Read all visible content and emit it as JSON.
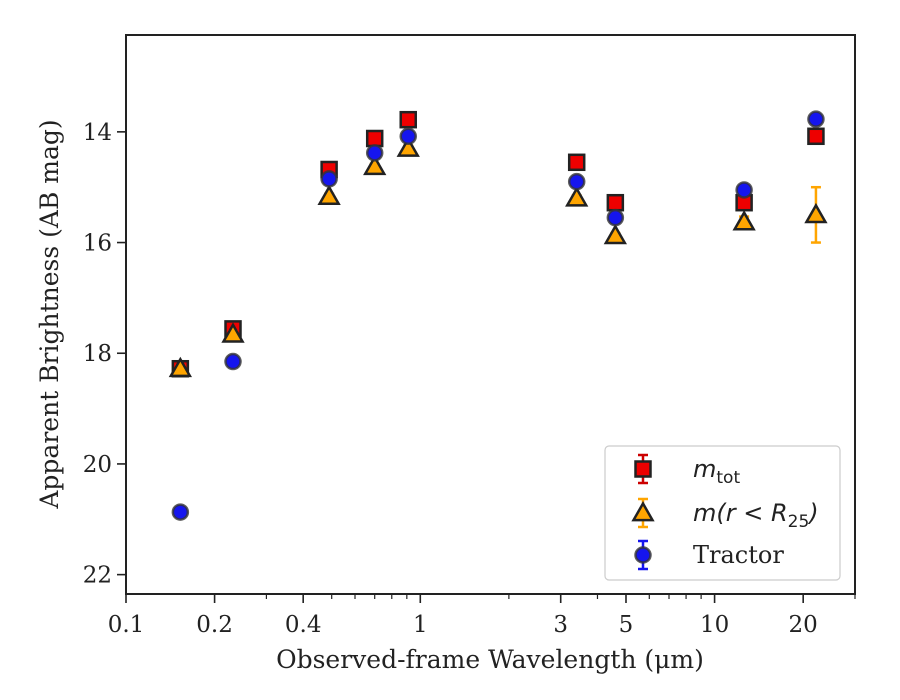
{
  "chart_data": {
    "type": "scatter",
    "title": "",
    "xlabel": "Observed-frame Wavelength (μm)",
    "ylabel": "Apparent Brightness (AB mag)",
    "xscale": "log",
    "xlim": [
      0.1,
      30
    ],
    "ylim": [
      22.35,
      12.25
    ],
    "y_inverted": true,
    "x_ticks": [
      0.1,
      0.2,
      0.4,
      1,
      3,
      5,
      10,
      20
    ],
    "x_tick_labels": [
      "0.1",
      "0.2",
      "0.4",
      "1",
      "3",
      "5",
      "10",
      "20"
    ],
    "y_ticks": [
      14,
      16,
      18,
      20,
      22
    ],
    "y_tick_labels": [
      "14",
      "16",
      "18",
      "20",
      "22"
    ],
    "grid": false,
    "legend_position": "lower-right",
    "series": [
      {
        "name": "m_tot",
        "label_main": "m",
        "label_sub": "tot",
        "marker": "square",
        "color": "#ee0000",
        "errcolor": "#cc0000",
        "points": [
          {
            "x": 0.153,
            "y": 18.28,
            "err": 0.05
          },
          {
            "x": 0.231,
            "y": 17.56,
            "err": 0.05
          },
          {
            "x": 0.49,
            "y": 14.68,
            "err": 0.05
          },
          {
            "x": 0.7,
            "y": 14.12,
            "err": 0.05
          },
          {
            "x": 0.91,
            "y": 13.78,
            "err": 0.05
          },
          {
            "x": 3.4,
            "y": 14.55,
            "err": 0.05
          },
          {
            "x": 4.6,
            "y": 15.28,
            "err": 0.05
          },
          {
            "x": 12.6,
            "y": 15.28,
            "err": 0.05
          },
          {
            "x": 22.1,
            "y": 14.08,
            "err": 0.05
          }
        ]
      },
      {
        "name": "m(r < R25)",
        "label_main": "m(r < R",
        "label_sub": "25",
        "label_end": ")",
        "marker": "triangle",
        "color": "#ffa500",
        "errcolor": "#ffa500",
        "points": [
          {
            "x": 0.153,
            "y": 18.28,
            "err": 0.05
          },
          {
            "x": 0.231,
            "y": 17.66,
            "err": 0.05
          },
          {
            "x": 0.49,
            "y": 15.17,
            "err": 0.05
          },
          {
            "x": 0.7,
            "y": 14.63,
            "err": 0.05
          },
          {
            "x": 0.91,
            "y": 14.3,
            "err": 0.05
          },
          {
            "x": 3.4,
            "y": 15.2,
            "err": 0.05
          },
          {
            "x": 4.6,
            "y": 15.88,
            "err": 0.05
          },
          {
            "x": 12.6,
            "y": 15.63,
            "err": 0.1
          },
          {
            "x": 22.1,
            "y": 15.5,
            "err": 0.5
          }
        ]
      },
      {
        "name": "Tractor",
        "label_main": "Tractor",
        "marker": "circle",
        "color": "#1515ee",
        "errcolor": "#1515ee",
        "points": [
          {
            "x": 0.153,
            "y": 20.87,
            "err": 0.05
          },
          {
            "x": 0.231,
            "y": 18.15,
            "err": 0.05
          },
          {
            "x": 0.49,
            "y": 14.85,
            "err": 0.05
          },
          {
            "x": 0.7,
            "y": 14.38,
            "err": 0.05
          },
          {
            "x": 0.91,
            "y": 14.08,
            "err": 0.05
          },
          {
            "x": 3.4,
            "y": 14.9,
            "err": 0.05
          },
          {
            "x": 4.6,
            "y": 15.55,
            "err": 0.05
          },
          {
            "x": 12.6,
            "y": 15.05,
            "err": 0.05
          },
          {
            "x": 22.1,
            "y": 13.77,
            "err": 0.05
          }
        ]
      }
    ]
  }
}
